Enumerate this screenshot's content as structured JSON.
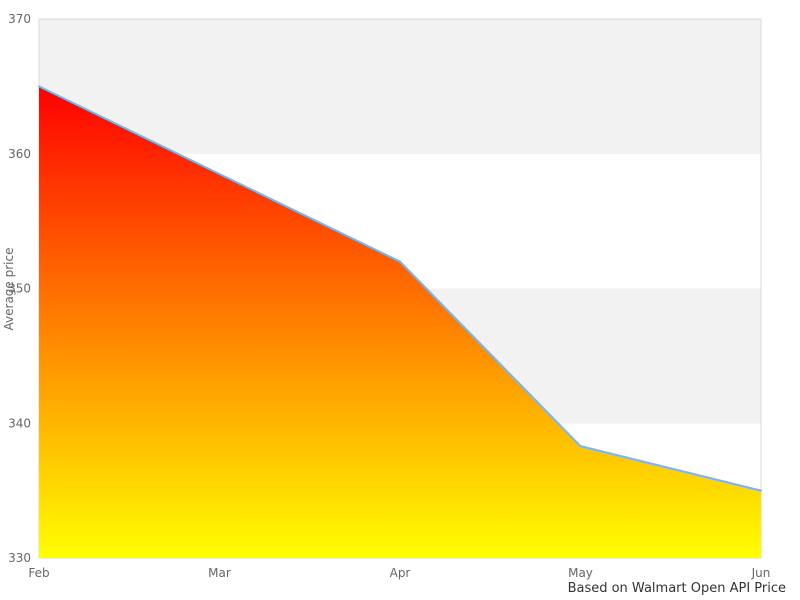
{
  "chart_data": {
    "type": "area",
    "categories": [
      "Feb",
      "Mar",
      "Apr",
      "May",
      "Jun"
    ],
    "series": [
      {
        "name": "Average price",
        "values": [
          365,
          358.5,
          352,
          338.3,
          335
        ]
      }
    ],
    "title": "",
    "xlabel": "",
    "ylabel": "Average price",
    "caption": "Based on Walmart Open API Price",
    "ylim": [
      330,
      370
    ],
    "yticks": [
      330,
      340,
      350,
      360,
      370
    ],
    "grid": "alternating-horizontal-bands",
    "legend_position": "none",
    "colors": {
      "line": "#7cb5ec",
      "area_gradient_top": "#ff0000",
      "area_gradient_bottom": "#ffff00",
      "band_fill": "#f2f2f2",
      "band_fill_alt": "#ffffff",
      "plot_border": "#d8d8d8",
      "tick_label": "#666666",
      "axis_title": "#666666",
      "caption_text": "#333333",
      "background": "#ffffff"
    }
  }
}
